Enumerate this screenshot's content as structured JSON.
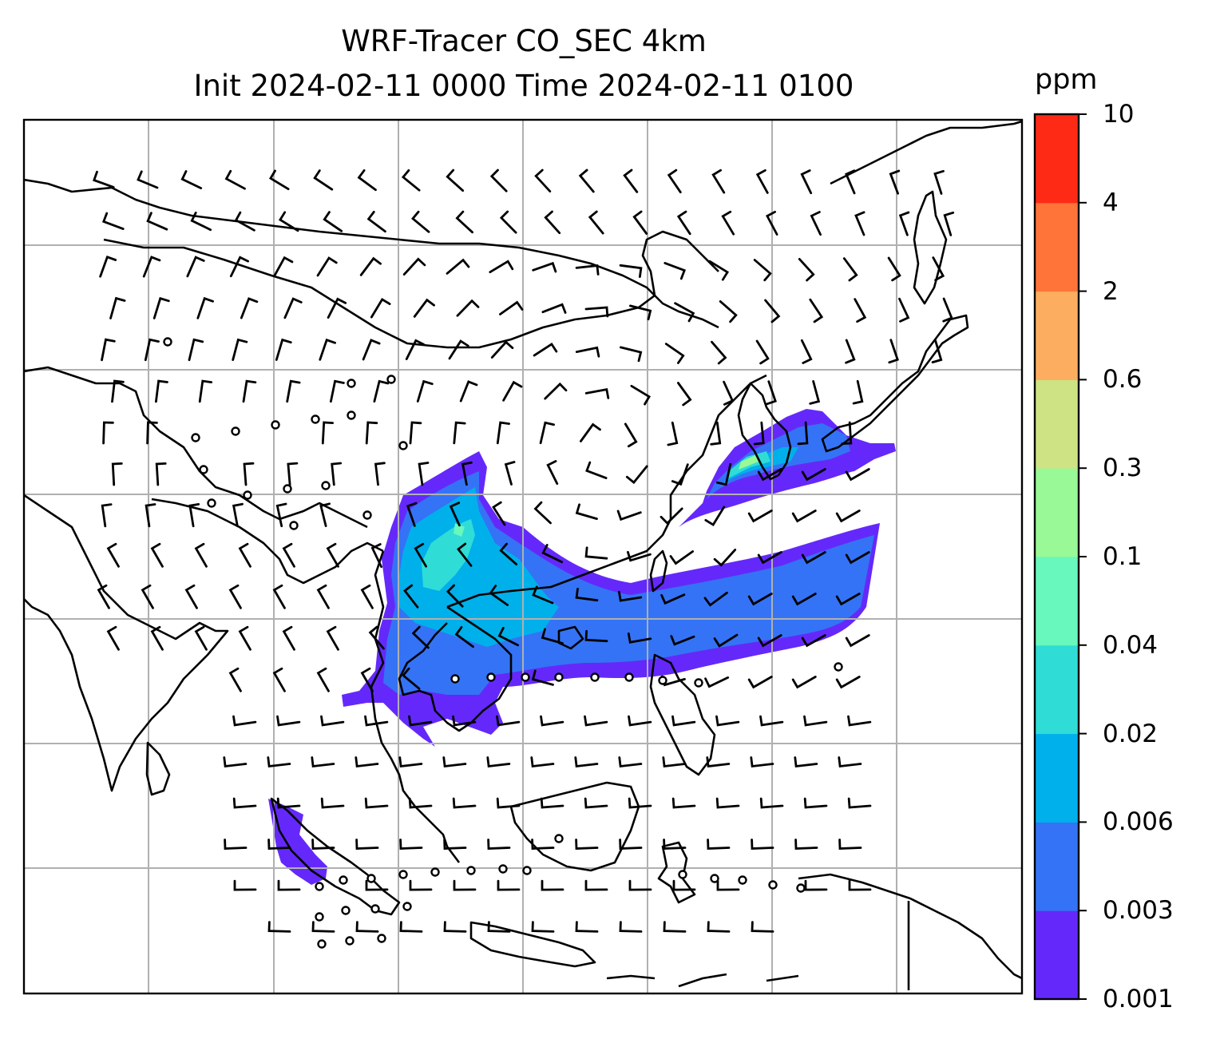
{
  "title": {
    "line1": "WRF-Tracer CO_SEC 4km",
    "line2": "Init 2024-02-11 0000 Time 2024-02-11 0100"
  },
  "colorbar": {
    "unit": "ppm",
    "levels": [
      "0.001",
      "0.003",
      "0.006",
      "0.02",
      "0.04",
      "0.1",
      "0.3",
      "0.6",
      "2",
      "4",
      "10"
    ],
    "colors": [
      "#6429fa",
      "#3473f5",
      "#00b0ea",
      "#30dcd6",
      "#68f7bc",
      "#98f996",
      "#cde384",
      "#fcad5f",
      "#ff7439",
      "#fe2a16"
    ]
  },
  "map": {
    "projection_grid": "lat-lon gridlines",
    "coastline_color": "#000000",
    "gridline_color": "#b0b0b0",
    "barb_color": "#000000",
    "calm_marker": "circle"
  }
}
